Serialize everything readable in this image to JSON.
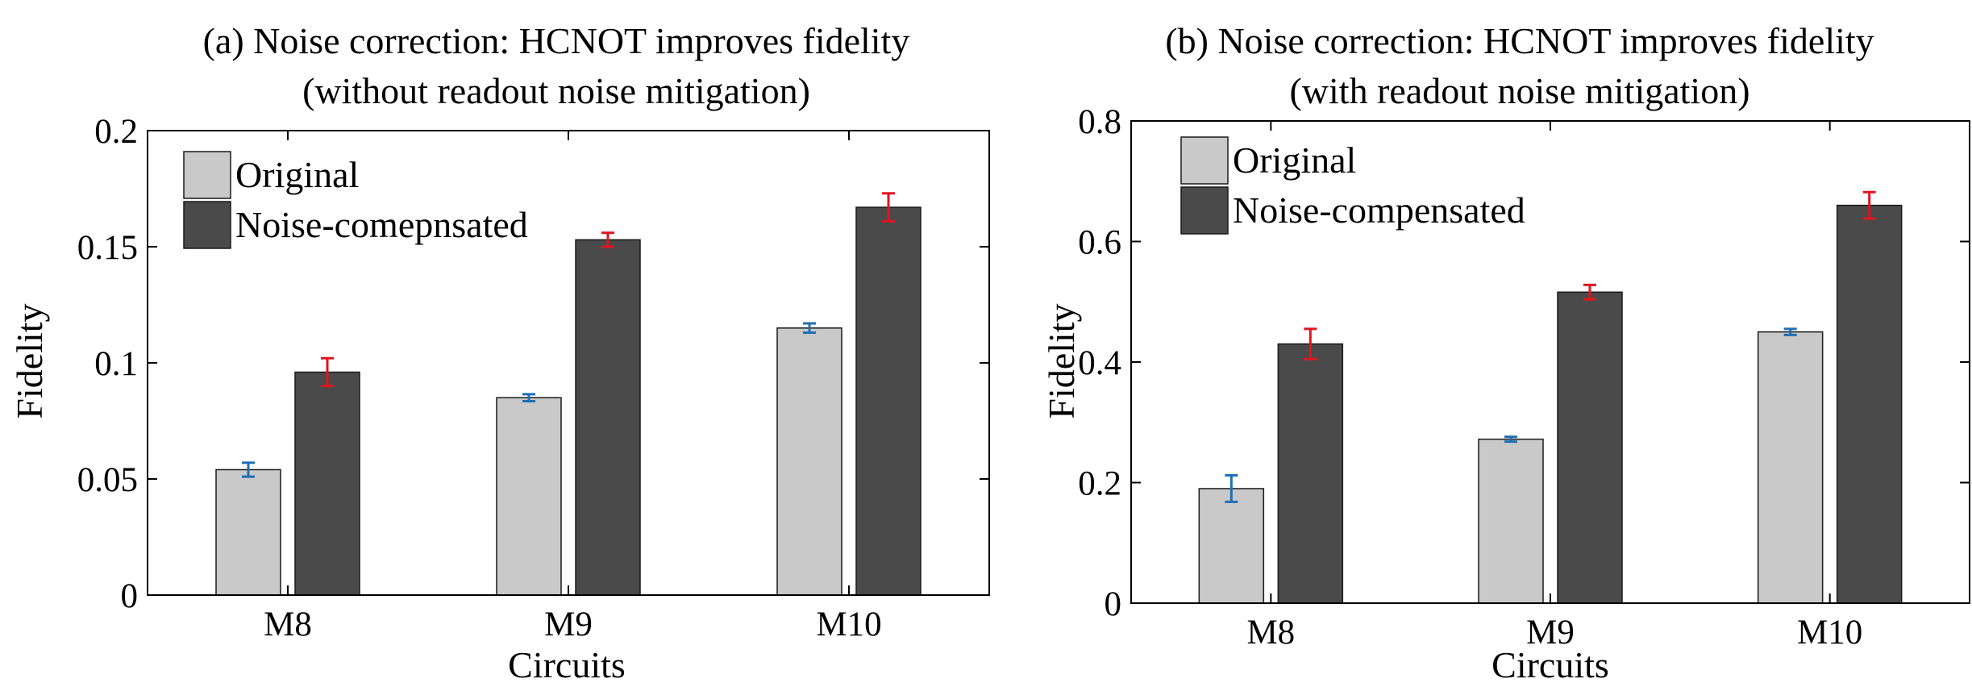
{
  "colors": {
    "original": "#c9c9c9",
    "compensated": "#4a4a4a",
    "original_error": "#1f6fb5",
    "compensated_error": "#e0141e",
    "axis": "#000000",
    "background": "#ffffff"
  },
  "chart_data": [
    {
      "type": "bar",
      "title": "(a) Noise correction: HCNOT improves fidelity",
      "subtitle": "(without readout noise mitigation)",
      "xlabel": "Circuits",
      "ylabel": "Fidelity",
      "categories": [
        "M8",
        "M9",
        "M10"
      ],
      "ylim": [
        0,
        0.2
      ],
      "yticks": [
        0,
        0.05,
        0.1,
        0.15,
        0.2
      ],
      "ytick_labels": [
        "0",
        "0.05",
        "0.1",
        "0.15",
        "0.2"
      ],
      "legend_position": "top-left",
      "grid": false,
      "series": [
        {
          "name": "Original",
          "values": [
            0.054,
            0.085,
            0.115
          ],
          "errors": [
            0.003,
            0.0015,
            0.002
          ]
        },
        {
          "name": "Noise-comepnsated",
          "values": [
            0.096,
            0.153,
            0.167
          ],
          "errors": [
            0.006,
            0.003,
            0.006
          ]
        }
      ]
    },
    {
      "type": "bar",
      "title": "(b) Noise correction: HCNOT improves fidelity",
      "subtitle": "(with readout noise mitigation)",
      "xlabel": "Circuits",
      "ylabel": "Fidelity",
      "categories": [
        "M8",
        "M9",
        "M10"
      ],
      "ylim": [
        0,
        0.8
      ],
      "yticks": [
        0,
        0.2,
        0.4,
        0.6,
        0.8
      ],
      "ytick_labels": [
        "0",
        "0.2",
        "0.4",
        "0.6",
        "0.8"
      ],
      "legend_position": "top-left",
      "grid": false,
      "series": [
        {
          "name": "Original",
          "values": [
            0.19,
            0.272,
            0.45
          ],
          "errors": [
            0.022,
            0.004,
            0.005
          ]
        },
        {
          "name": "Noise-compensated",
          "values": [
            0.43,
            0.516,
            0.66
          ],
          "errors": [
            0.025,
            0.012,
            0.022
          ]
        }
      ]
    }
  ]
}
